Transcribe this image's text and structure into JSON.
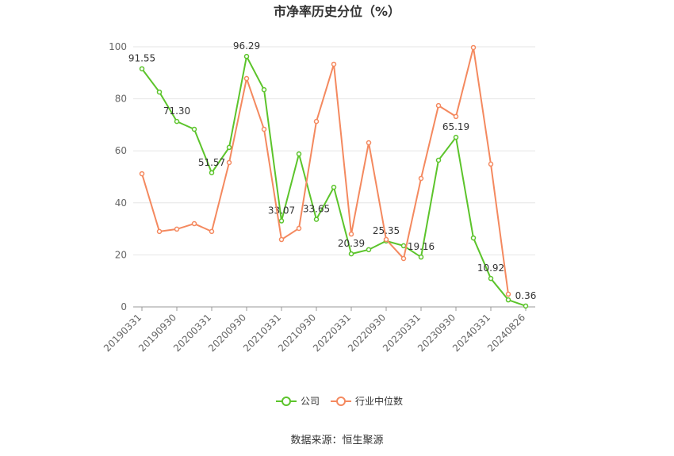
{
  "chart_data": {
    "type": "line",
    "title": "市净率历史分位（%）",
    "source": "数据来源：恒生聚源",
    "categories": [
      "20190331",
      null,
      "20190930",
      null,
      "20200331",
      null,
      "20200930",
      null,
      "20210331",
      null,
      "20210930",
      null,
      "20220331",
      null,
      "20220930",
      null,
      "20230331",
      null,
      "20230930",
      null,
      "20240331",
      null,
      "20240826"
    ],
    "ylim": [
      0,
      100
    ],
    "yticks": [
      0,
      20,
      40,
      60,
      80,
      100
    ],
    "grid": true,
    "legend": "bottom",
    "series": [
      {
        "name": "公司",
        "color": "#5cc42b",
        "values": [
          91.55,
          82.6,
          71.3,
          68.3,
          51.57,
          61.3,
          96.29,
          83.5,
          33.07,
          58.8,
          33.65,
          46.0,
          20.39,
          22.0,
          25.35,
          23.5,
          19.16,
          56.4,
          65.19,
          26.5,
          10.92,
          2.7,
          0.36
        ],
        "value_labels": [
          "91.55",
          null,
          "71.30",
          null,
          "51.57",
          null,
          "96.29",
          null,
          "33.07",
          null,
          "33.65",
          null,
          "20.39",
          null,
          "25.35",
          null,
          "19.16",
          null,
          "65.19",
          null,
          "10.92",
          null,
          "0.36"
        ]
      },
      {
        "name": "行业中位数",
        "color": "#f4895f",
        "values": [
          51.2,
          29.0,
          29.9,
          32.0,
          29.0,
          55.5,
          87.8,
          68.3,
          25.9,
          30.2,
          71.3,
          93.3,
          28.0,
          63.1,
          25.9,
          18.6,
          49.4,
          77.4,
          73.2,
          99.7,
          54.9,
          4.9,
          null
        ]
      }
    ]
  }
}
